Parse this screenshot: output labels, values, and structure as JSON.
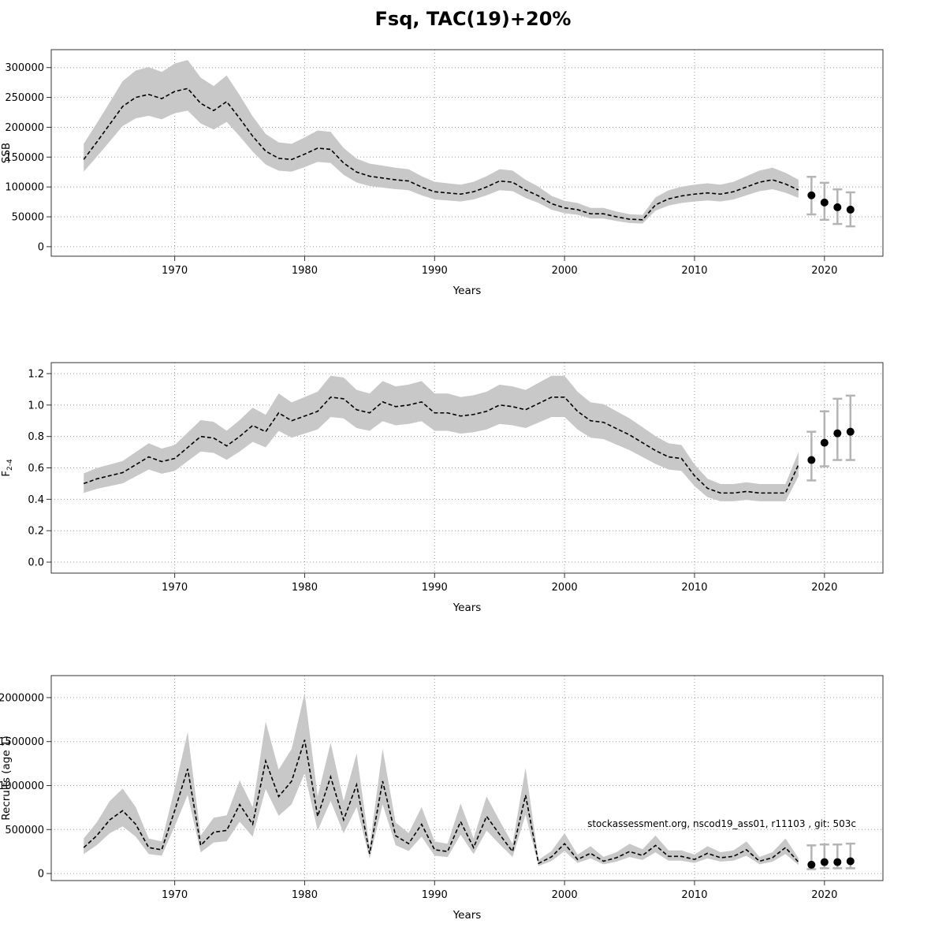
{
  "title": "Fsq, TAC(19)+20%",
  "footnote": "stockassessment.org, nscod19_ass01, r11103 , git: 503c",
  "colors": {
    "band": "#c8c8c8",
    "line": "#000000",
    "errbar": "#b4b4b4",
    "point": "#000000",
    "grid": "#9a9a9a",
    "axis": "#333333"
  },
  "chart_data": [
    {
      "type": "line",
      "name": "ssb",
      "title": "",
      "xlabel": "Years",
      "ylabel": "SSB",
      "ylabel_sub": "",
      "xlim": [
        1960.5,
        2024.5
      ],
      "ylim": [
        -16000,
        330000
      ],
      "xticks": [
        1970,
        1980,
        1990,
        2000,
        2010,
        2020
      ],
      "yticks": [
        0,
        50000,
        100000,
        150000,
        200000,
        250000,
        300000
      ],
      "ytick_labels": [
        "0",
        "50000",
        "100000",
        "150000",
        "200000",
        "250000",
        "300000"
      ],
      "start_year": 1963,
      "mean": [
        146000,
        175000,
        205000,
        235000,
        250000,
        255000,
        248000,
        260000,
        265000,
        240000,
        228000,
        243000,
        215000,
        185000,
        160000,
        148000,
        146000,
        155000,
        165000,
        163000,
        140000,
        125000,
        118000,
        115000,
        112000,
        110000,
        100000,
        92000,
        90000,
        88000,
        92000,
        100000,
        110000,
        108000,
        95000,
        85000,
        72000,
        65000,
        62000,
        55000,
        55000,
        50000,
        46000,
        45000,
        70000,
        80000,
        85000,
        88000,
        90000,
        88000,
        92000,
        100000,
        108000,
        112000,
        105000,
        95000
      ],
      "band_lo_factor": 0.86,
      "band_hi_factor": 1.18,
      "forecast": {
        "years": [
          2019,
          2020,
          2021,
          2022
        ],
        "mean": [
          86000,
          74000,
          66000,
          62000
        ],
        "lo": [
          54000,
          45000,
          38000,
          34000
        ],
        "hi": [
          117000,
          107000,
          96000,
          91000
        ]
      }
    },
    {
      "type": "line",
      "name": "f2-4",
      "title": "",
      "xlabel": "Years",
      "ylabel": "F",
      "ylabel_sub": "2-4",
      "xlim": [
        1960.5,
        2024.5
      ],
      "ylim": [
        -0.07,
        1.27
      ],
      "xticks": [
        1970,
        1980,
        1990,
        2000,
        2010,
        2020
      ],
      "yticks": [
        0,
        0.2,
        0.4,
        0.6,
        0.8,
        1.0,
        1.2
      ],
      "ytick_labels": [
        "0.0",
        "0.2",
        "0.4",
        "0.6",
        "0.8",
        "1.0",
        "1.2"
      ],
      "start_year": 1963,
      "mean": [
        0.5,
        0.53,
        0.55,
        0.57,
        0.62,
        0.67,
        0.64,
        0.66,
        0.73,
        0.8,
        0.79,
        0.74,
        0.8,
        0.87,
        0.83,
        0.95,
        0.9,
        0.93,
        0.96,
        1.05,
        1.04,
        0.97,
        0.95,
        1.02,
        0.99,
        1.0,
        1.02,
        0.95,
        0.95,
        0.93,
        0.94,
        0.96,
        1.0,
        0.99,
        0.97,
        1.01,
        1.05,
        1.05,
        0.96,
        0.9,
        0.89,
        0.85,
        0.81,
        0.76,
        0.71,
        0.67,
        0.66,
        0.55,
        0.47,
        0.44,
        0.44,
        0.45,
        0.44,
        0.44,
        0.44,
        0.62
      ],
      "band_lo_factor": 0.88,
      "band_hi_factor": 1.13,
      "forecast": {
        "years": [
          2019,
          2020,
          2021,
          2022
        ],
        "mean": [
          0.65,
          0.76,
          0.82,
          0.83
        ],
        "lo": [
          0.52,
          0.61,
          0.65,
          0.65
        ],
        "hi": [
          0.83,
          0.96,
          1.04,
          1.06
        ]
      }
    },
    {
      "type": "line",
      "name": "recruits",
      "title": "",
      "xlabel": "Years",
      "ylabel": "Recruits (age 1)",
      "ylabel_sub": "",
      "xlim": [
        1960.5,
        2024.5
      ],
      "ylim": [
        -80000,
        2250000
      ],
      "xticks": [
        1970,
        1980,
        1990,
        2000,
        2010,
        2020
      ],
      "yticks": [
        0,
        500000,
        1000000,
        1500000,
        2000000
      ],
      "ytick_labels": [
        "0",
        "500000",
        "1000000",
        "1500000",
        "2000000"
      ],
      "start_year": 1963,
      "mean": [
        295000,
        430000,
        610000,
        715000,
        560000,
        295000,
        270000,
        715000,
        1190000,
        320000,
        470000,
        490000,
        785000,
        560000,
        1280000,
        875000,
        1050000,
        1520000,
        650000,
        1100000,
        610000,
        1010000,
        225000,
        1050000,
        430000,
        340000,
        560000,
        270000,
        250000,
        590000,
        295000,
        650000,
        445000,
        250000,
        890000,
        115000,
        190000,
        340000,
        160000,
        230000,
        140000,
        180000,
        250000,
        205000,
        320000,
        195000,
        195000,
        160000,
        230000,
        180000,
        195000,
        270000,
        140000,
        180000,
        295000,
        130000
      ],
      "band_lo_factor": 0.75,
      "band_hi_factor": 1.35,
      "forecast": {
        "years": [
          2019,
          2020,
          2021,
          2022
        ],
        "mean": [
          100000,
          130000,
          130000,
          140000
        ],
        "lo": [
          50000,
          60000,
          60000,
          60000
        ],
        "hi": [
          320000,
          330000,
          330000,
          340000
        ]
      }
    }
  ]
}
